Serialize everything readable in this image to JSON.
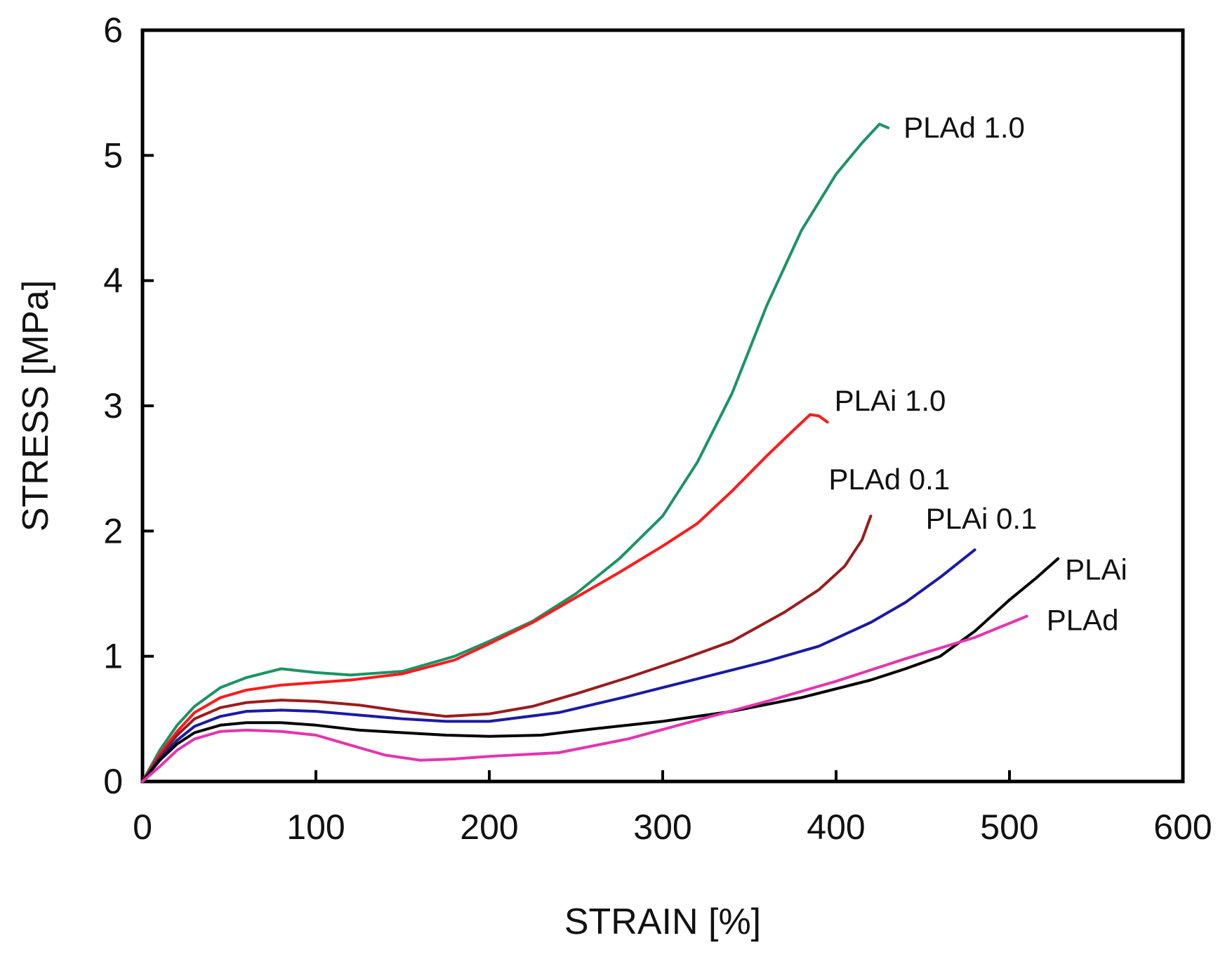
{
  "chart_data": {
    "type": "line",
    "xlabel": "STRAIN [%]",
    "ylabel": "STRESS [MPa]",
    "xlim": [
      0,
      600
    ],
    "ylim": [
      0,
      6
    ],
    "xticks": [
      0,
      100,
      200,
      300,
      400,
      500,
      600
    ],
    "yticks": [
      0,
      1,
      2,
      3,
      4,
      5,
      6
    ],
    "grid": false,
    "legend": "labels at line ends",
    "series": [
      {
        "name": "PLAd 1.0",
        "color": "#1b9464",
        "x": [
          0,
          10,
          20,
          30,
          45,
          60,
          80,
          100,
          120,
          150,
          180,
          200,
          225,
          250,
          275,
          300,
          320,
          340,
          360,
          380,
          400,
          415,
          425,
          430
        ],
        "y": [
          0,
          0.25,
          0.45,
          0.6,
          0.75,
          0.83,
          0.9,
          0.87,
          0.85,
          0.88,
          1.0,
          1.12,
          1.28,
          1.5,
          1.78,
          2.12,
          2.55,
          3.1,
          3.8,
          4.4,
          4.85,
          5.1,
          5.25,
          5.22
        ]
      },
      {
        "name": "PLAi 1.0",
        "color": "#ff1a1a",
        "x": [
          0,
          10,
          20,
          30,
          45,
          60,
          80,
          100,
          120,
          150,
          180,
          200,
          225,
          250,
          275,
          300,
          320,
          340,
          360,
          375,
          385,
          390,
          395
        ],
        "y": [
          0,
          0.22,
          0.4,
          0.55,
          0.67,
          0.73,
          0.77,
          0.79,
          0.81,
          0.86,
          0.97,
          1.1,
          1.27,
          1.47,
          1.67,
          1.88,
          2.06,
          2.32,
          2.6,
          2.8,
          2.93,
          2.92,
          2.87
        ]
      },
      {
        "name": "PLAd 0.1",
        "color": "#9b1c1c",
        "x": [
          0,
          10,
          20,
          30,
          45,
          60,
          80,
          100,
          125,
          150,
          175,
          200,
          225,
          250,
          280,
          310,
          340,
          370,
          390,
          405,
          415,
          420
        ],
        "y": [
          0,
          0.2,
          0.37,
          0.5,
          0.59,
          0.63,
          0.65,
          0.64,
          0.61,
          0.56,
          0.52,
          0.54,
          0.6,
          0.7,
          0.83,
          0.97,
          1.12,
          1.35,
          1.53,
          1.72,
          1.93,
          2.12
        ]
      },
      {
        "name": "PLAi 0.1",
        "color": "#1a1aa6",
        "x": [
          0,
          10,
          20,
          30,
          45,
          60,
          80,
          100,
          125,
          150,
          175,
          200,
          240,
          280,
          320,
          360,
          390,
          420,
          440,
          460,
          480
        ],
        "y": [
          0,
          0.18,
          0.33,
          0.44,
          0.52,
          0.56,
          0.57,
          0.56,
          0.53,
          0.5,
          0.48,
          0.48,
          0.55,
          0.68,
          0.82,
          0.96,
          1.08,
          1.27,
          1.43,
          1.63,
          1.85
        ]
      },
      {
        "name": "PLAi",
        "color": "#000000",
        "x": [
          0,
          10,
          20,
          30,
          45,
          60,
          80,
          100,
          125,
          150,
          175,
          200,
          230,
          260,
          300,
          340,
          380,
          420,
          440,
          460,
          480,
          500,
          515,
          528
        ],
        "y": [
          0,
          0.17,
          0.3,
          0.39,
          0.45,
          0.47,
          0.47,
          0.45,
          0.41,
          0.39,
          0.37,
          0.36,
          0.37,
          0.42,
          0.48,
          0.56,
          0.67,
          0.81,
          0.9,
          1.0,
          1.2,
          1.45,
          1.62,
          1.78
        ]
      },
      {
        "name": "PLAd",
        "color": "#e633b0",
        "x": [
          0,
          10,
          20,
          30,
          45,
          60,
          80,
          100,
          120,
          140,
          160,
          180,
          200,
          240,
          280,
          320,
          360,
          400,
          440,
          480,
          510
        ],
        "y": [
          0,
          0.12,
          0.25,
          0.34,
          0.4,
          0.41,
          0.4,
          0.37,
          0.29,
          0.21,
          0.17,
          0.18,
          0.2,
          0.23,
          0.34,
          0.49,
          0.64,
          0.8,
          0.98,
          1.15,
          1.32
        ]
      }
    ]
  }
}
